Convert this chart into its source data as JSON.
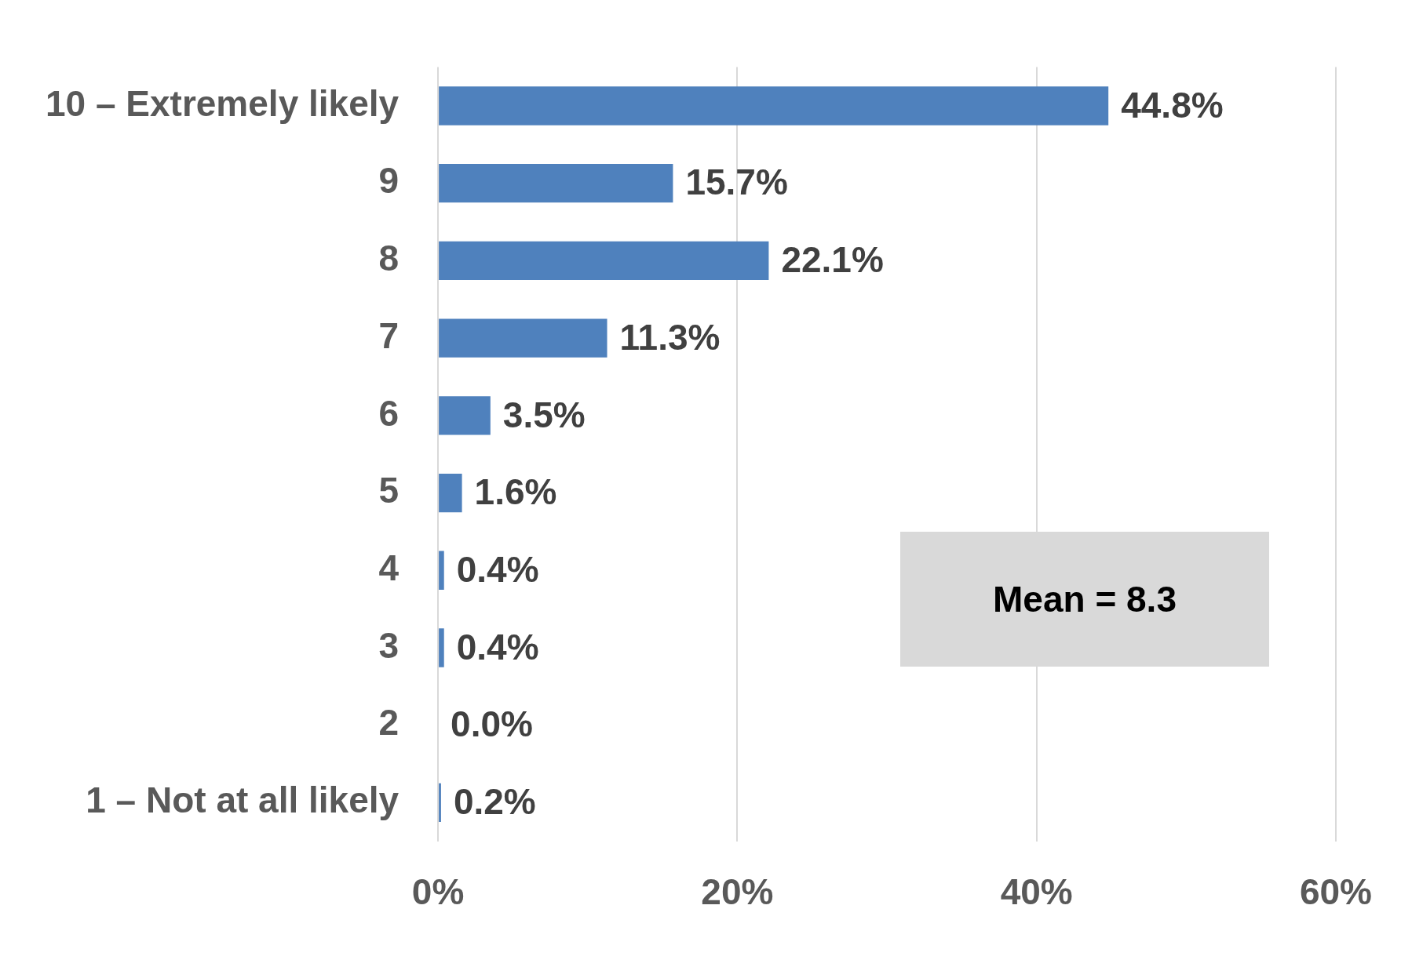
{
  "chart_data": {
    "type": "bar",
    "orientation": "horizontal",
    "categories": [
      "10 – Extremely likely",
      "9",
      "8",
      "7",
      "6",
      "5",
      "4",
      "3",
      "2",
      "1 – Not at all likely"
    ],
    "values": [
      44.8,
      15.7,
      22.1,
      11.3,
      3.5,
      1.6,
      0.4,
      0.4,
      0.0,
      0.2
    ],
    "value_labels": [
      "44.8%",
      "15.7%",
      "22.1%",
      "11.3%",
      "3.5%",
      "1.6%",
      "0.4%",
      "0.4%",
      "0.0%",
      "0.2%"
    ],
    "color": "#4f81bd",
    "xlim": [
      0,
      60
    ],
    "xticks": [
      {
        "value": 0,
        "label": "0%"
      },
      {
        "value": 20,
        "label": "20%"
      },
      {
        "value": 40,
        "label": "40%"
      },
      {
        "value": 60,
        "label": "60%"
      }
    ],
    "grid": "x",
    "legend": false,
    "annotations": [
      "Mean = 8.3"
    ]
  }
}
